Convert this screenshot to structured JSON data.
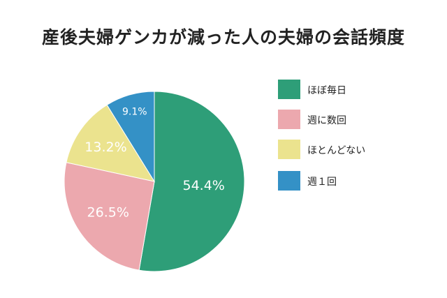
{
  "chart_data": {
    "type": "pie",
    "title": "産後夫婦ゲンカが減った人の夫婦の会話頻度",
    "slices": [
      {
        "label": "ほぼ毎日",
        "value": 54.4,
        "display": "54.4%",
        "color": "#2e9e78"
      },
      {
        "label": "週に数回",
        "value": 26.5,
        "display": "26.5%",
        "color": "#eca8ae"
      },
      {
        "label": "ほとんどない",
        "value": 13.2,
        "display": "13.2%",
        "color": "#ebe38e"
      },
      {
        "label": "週１回",
        "value": 9.1,
        "display": "9.1%",
        "color": "#3491c6"
      }
    ],
    "legend_position": "right",
    "start": "top",
    "direction": "clockwise"
  }
}
